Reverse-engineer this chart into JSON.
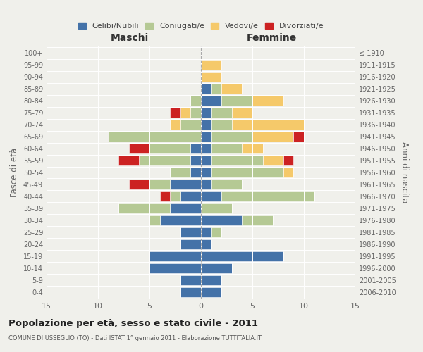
{
  "age_groups": [
    "0-4",
    "5-9",
    "10-14",
    "15-19",
    "20-24",
    "25-29",
    "30-34",
    "35-39",
    "40-44",
    "45-49",
    "50-54",
    "55-59",
    "60-64",
    "65-69",
    "70-74",
    "75-79",
    "80-84",
    "85-89",
    "90-94",
    "95-99",
    "100+"
  ],
  "birth_years": [
    "2006-2010",
    "2001-2005",
    "1996-2000",
    "1991-1995",
    "1986-1990",
    "1981-1985",
    "1976-1980",
    "1971-1975",
    "1966-1970",
    "1961-1965",
    "1956-1960",
    "1951-1955",
    "1946-1950",
    "1941-1945",
    "1936-1940",
    "1931-1935",
    "1926-1930",
    "1921-1925",
    "1916-1920",
    "1911-1915",
    "≤ 1910"
  ],
  "colors": {
    "celibi": "#4472a8",
    "coniugati": "#b5c994",
    "vedovi": "#f5c96a",
    "divorziati": "#cc2222"
  },
  "maschi": {
    "celibi": [
      2,
      2,
      5,
      5,
      2,
      2,
      4,
      3,
      2,
      3,
      1,
      1,
      1,
      0,
      0,
      0,
      0,
      0,
      0,
      0,
      0
    ],
    "coniugati": [
      0,
      0,
      0,
      0,
      0,
      0,
      1,
      5,
      1,
      2,
      2,
      5,
      4,
      9,
      2,
      1,
      1,
      0,
      0,
      0,
      0
    ],
    "vedovi": [
      0,
      0,
      0,
      0,
      0,
      0,
      0,
      0,
      0,
      0,
      0,
      0,
      0,
      0,
      1,
      1,
      0,
      0,
      0,
      0,
      0
    ],
    "divorziati": [
      0,
      0,
      0,
      0,
      0,
      0,
      0,
      0,
      1,
      2,
      0,
      2,
      2,
      0,
      0,
      1,
      0,
      0,
      0,
      0,
      0
    ]
  },
  "femmine": {
    "celibi": [
      2,
      2,
      3,
      8,
      1,
      1,
      4,
      0,
      2,
      1,
      1,
      1,
      1,
      1,
      1,
      1,
      2,
      1,
      0,
      0,
      0
    ],
    "coniugati": [
      0,
      0,
      0,
      0,
      0,
      1,
      3,
      3,
      9,
      3,
      7,
      5,
      3,
      4,
      2,
      2,
      3,
      1,
      0,
      0,
      0
    ],
    "vedovi": [
      0,
      0,
      0,
      0,
      0,
      0,
      0,
      0,
      0,
      0,
      1,
      2,
      2,
      4,
      7,
      2,
      3,
      2,
      2,
      2,
      0
    ],
    "divorziati": [
      0,
      0,
      0,
      0,
      0,
      0,
      0,
      0,
      0,
      0,
      0,
      1,
      0,
      1,
      0,
      0,
      0,
      0,
      0,
      0,
      0
    ]
  },
  "xlim": 15,
  "title": "Popolazione per età, sesso e stato civile - 2011",
  "subtitle": "COMUNE DI USSEGLIO (TO) - Dati ISTAT 1° gennaio 2011 - Elaborazione TUTTITALIA.IT",
  "ylabel_left": "Fasce di età",
  "ylabel_right": "Anni di nascita",
  "xlabel_maschi": "Maschi",
  "xlabel_femmine": "Femmine",
  "legend_labels": [
    "Celibi/Nubili",
    "Coniugati/e",
    "Vedovi/e",
    "Divorziati/e"
  ],
  "bg_color": "#f0f0eb",
  "grid_color": "#ffffff",
  "text_color": "#666666"
}
